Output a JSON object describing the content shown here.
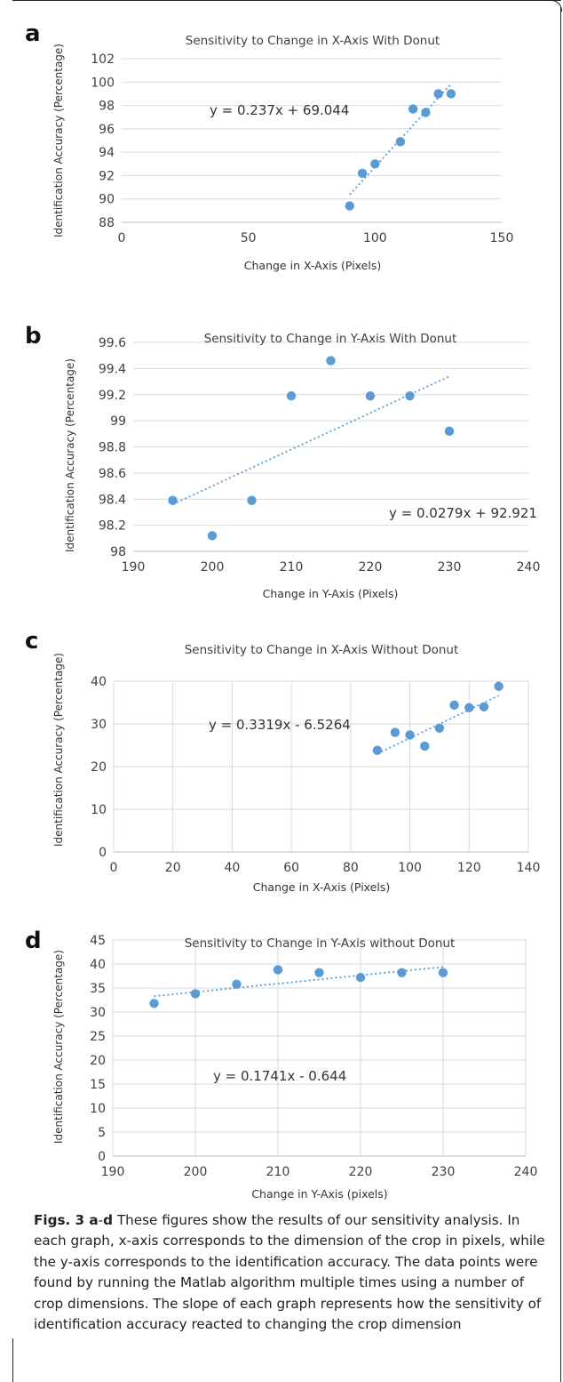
{
  "caption": {
    "lead_prefix": "Figs. 3",
    "lead_a": "a",
    "lead_dash": "-",
    "lead_d": "d",
    "text": " These figures show the results of our sensitivity analysis. In each graph, x-axis corresponds to the dimension of the crop in pixels, while the y-axis corresponds to the identification accuracy. The data points were found by running the Matlab algorithm multiple times using a number of crop dimensions. The slope of each graph represents how the sensitivity of identification accuracy reacted to changing the crop dimension"
  },
  "colors": {
    "points": "#5b9bd5",
    "trend": "#5b9bd5",
    "grid": "#d9d9d9",
    "text": "#404040"
  },
  "chart_data": [
    {
      "panel_letter": "a",
      "type": "scatter",
      "title": "Sensitivity to Change in X-Axis With Donut",
      "xlabel": "Change in X-Axis (Pixels)",
      "ylabel": "Identification Accuracy (Percentage)",
      "xlim": [
        0,
        150
      ],
      "ylim": [
        88,
        102
      ],
      "xticks": [
        "0",
        "50",
        "100",
        "150"
      ],
      "yticks": [
        "88",
        "90",
        "92",
        "94",
        "96",
        "98",
        "100",
        "102"
      ],
      "grid": "horizontal",
      "points": [
        [
          90,
          89.4
        ],
        [
          95,
          92.2
        ],
        [
          100,
          93.0
        ],
        [
          110,
          94.9
        ],
        [
          115,
          97.7
        ],
        [
          120,
          97.4
        ],
        [
          125,
          99.0
        ],
        [
          130,
          99.0
        ]
      ],
      "trendline": {
        "equation": "y = 0.237x + 69.044",
        "from_x": 90,
        "to_x": 130,
        "y_at_from": 90.37,
        "y_at_to": 99.85
      }
    },
    {
      "panel_letter": "b",
      "type": "scatter",
      "title": "Sensitivity to Change in Y-Axis With Donut",
      "xlabel": "Change in Y-Axis (Pixels)",
      "ylabel": "Identification Accuracy (Percentage)",
      "xlim": [
        190,
        240
      ],
      "ylim": [
        98,
        99.6
      ],
      "xticks": [
        "190",
        "200",
        "210",
        "220",
        "230",
        "240"
      ],
      "yticks": [
        "98",
        "98.2",
        "98.4",
        "98.6",
        "98.8",
        "99",
        "99.2",
        "99.4",
        "99.6"
      ],
      "grid": "horizontal",
      "points": [
        [
          195,
          98.39
        ],
        [
          200,
          98.12
        ],
        [
          205,
          98.39
        ],
        [
          210,
          99.19
        ],
        [
          215,
          99.46
        ],
        [
          220,
          99.19
        ],
        [
          225,
          99.19
        ],
        [
          230,
          98.92
        ]
      ],
      "trendline": {
        "equation": "y = 0.0279x + 92.921",
        "from_x": 195,
        "to_x": 230,
        "y_at_from": 98.36,
        "y_at_to": 99.34
      }
    },
    {
      "panel_letter": "c",
      "type": "scatter",
      "title": "Sensitivity to Change in X-Axis Without Donut",
      "xlabel": "Change in X-Axis (Pixels)",
      "ylabel": "Identification Accuracy (Percentage)",
      "xlim": [
        0,
        140
      ],
      "ylim": [
        0,
        40
      ],
      "xticks": [
        "0",
        "20",
        "40",
        "60",
        "80",
        "100",
        "120",
        "140"
      ],
      "yticks": [
        "0",
        "10",
        "20",
        "30",
        "40"
      ],
      "grid": "both",
      "points": [
        [
          89,
          23.8
        ],
        [
          95,
          28.0
        ],
        [
          100,
          27.4
        ],
        [
          105,
          24.8
        ],
        [
          110,
          29.0
        ],
        [
          115,
          34.4
        ],
        [
          120,
          33.8
        ],
        [
          125,
          34.0
        ],
        [
          130,
          38.8
        ]
      ],
      "trendline": {
        "equation": "y = 0.3319x - 6.5264",
        "from_x": 89,
        "to_x": 130,
        "y_at_from": 23.01,
        "y_at_to": 36.62
      }
    },
    {
      "panel_letter": "d",
      "type": "scatter",
      "title": "Sensitivity to Change in Y-Axis without Donut",
      "xlabel": "Change in Y-Axis (pixels)",
      "ylabel": "Identification Accuracy (Percentage)",
      "xlim": [
        190,
        240
      ],
      "ylim": [
        0,
        45
      ],
      "xticks": [
        "190",
        "200",
        "210",
        "220",
        "230",
        "240"
      ],
      "yticks": [
        "0",
        "5",
        "10",
        "15",
        "20",
        "25",
        "30",
        "35",
        "40",
        "45"
      ],
      "grid": "both",
      "points": [
        [
          195,
          31.8
        ],
        [
          200,
          33.8
        ],
        [
          205,
          35.8
        ],
        [
          210,
          38.8
        ],
        [
          215,
          38.2
        ],
        [
          220,
          37.2
        ],
        [
          225,
          38.2
        ],
        [
          230,
          38.2
        ]
      ],
      "trendline": {
        "equation": "y = 0.1741x - 0.644",
        "from_x": 195,
        "to_x": 230,
        "y_at_from": 33.3,
        "y_at_to": 39.4
      }
    }
  ]
}
